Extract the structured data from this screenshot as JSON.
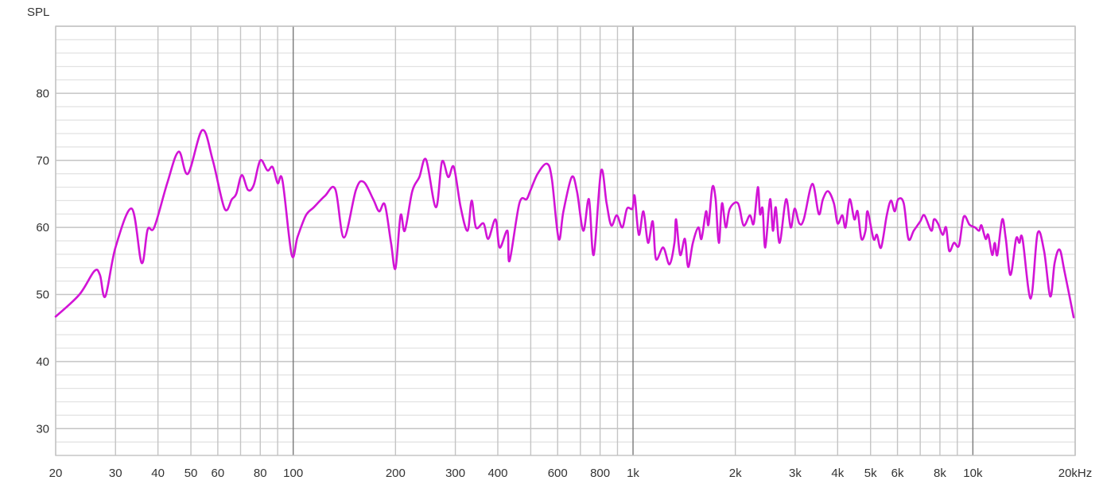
{
  "chart_data": {
    "type": "line",
    "ylabel": "SPL",
    "xlabel": "",
    "x_scale": "log",
    "xlim": [
      20,
      20000
    ],
    "ylim": [
      26,
      90
    ],
    "grid": true,
    "line_color": "#d214d6",
    "x_tick_labels": [
      {
        "v": 20,
        "t": "20"
      },
      {
        "v": 30,
        "t": "30"
      },
      {
        "v": 40,
        "t": "40"
      },
      {
        "v": 50,
        "t": "50"
      },
      {
        "v": 60,
        "t": "60"
      },
      {
        "v": 80,
        "t": "80"
      },
      {
        "v": 100,
        "t": "100"
      },
      {
        "v": 200,
        "t": "200"
      },
      {
        "v": 300,
        "t": "300"
      },
      {
        "v": 400,
        "t": "400"
      },
      {
        "v": 600,
        "t": "600"
      },
      {
        "v": 800,
        "t": "800"
      },
      {
        "v": 1000,
        "t": "1k"
      },
      {
        "v": 2000,
        "t": "2k"
      },
      {
        "v": 3000,
        "t": "3k"
      },
      {
        "v": 4000,
        "t": "4k"
      },
      {
        "v": 5000,
        "t": "5k"
      },
      {
        "v": 6000,
        "t": "6k"
      },
      {
        "v": 8000,
        "t": "8k"
      },
      {
        "v": 10000,
        "t": "10k"
      },
      {
        "v": 20000,
        "t": "20kHz"
      }
    ],
    "y_tick_labels": [
      {
        "v": 30,
        "t": "30"
      },
      {
        "v": 40,
        "t": "40"
      },
      {
        "v": 50,
        "t": "50"
      },
      {
        "v": 60,
        "t": "60"
      },
      {
        "v": 70,
        "t": "70"
      },
      {
        "v": 80,
        "t": "80"
      }
    ],
    "points": [
      [
        20,
        46.7
      ],
      [
        23.5,
        50
      ],
      [
        26,
        53.5
      ],
      [
        27,
        52.9
      ],
      [
        28,
        49.7
      ],
      [
        30,
        57
      ],
      [
        33.5,
        62.8
      ],
      [
        35.8,
        54.7
      ],
      [
        37.3,
        59.7
      ],
      [
        39,
        60
      ],
      [
        42.6,
        66.6
      ],
      [
        46,
        71.3
      ],
      [
        49,
        68
      ],
      [
        54,
        74.5
      ],
      [
        58,
        70
      ],
      [
        62.8,
        62.8
      ],
      [
        66,
        64.2
      ],
      [
        68,
        65
      ],
      [
        70.6,
        67.8
      ],
      [
        73.6,
        65.6
      ],
      [
        76.5,
        66.3
      ],
      [
        80,
        70
      ],
      [
        84,
        68.5
      ],
      [
        87,
        69
      ],
      [
        90,
        66.6
      ],
      [
        93,
        67
      ],
      [
        99,
        55.9
      ],
      [
        103,
        58.6
      ],
      [
        109,
        61.8
      ],
      [
        115,
        63
      ],
      [
        124,
        64.7
      ],
      [
        133,
        65.7
      ],
      [
        141,
        58.5
      ],
      [
        153,
        65.6
      ],
      [
        161,
        66.8
      ],
      [
        172,
        64.2
      ],
      [
        179,
        62.4
      ],
      [
        186,
        63.4
      ],
      [
        194,
        57.7
      ],
      [
        200,
        53.9
      ],
      [
        207,
        61.8
      ],
      [
        213,
        59.5
      ],
      [
        224,
        65.4
      ],
      [
        235,
        67.5
      ],
      [
        246,
        70.1
      ],
      [
        263,
        63
      ],
      [
        274,
        69.8
      ],
      [
        286,
        67.5
      ],
      [
        297,
        69
      ],
      [
        311,
        63
      ],
      [
        326,
        59.5
      ],
      [
        335,
        64
      ],
      [
        345,
        60
      ],
      [
        363,
        60.6
      ],
      [
        375,
        58.3
      ],
      [
        394,
        61.2
      ],
      [
        405,
        57
      ],
      [
        427,
        59.5
      ],
      [
        433,
        55
      ],
      [
        463,
        63.6
      ],
      [
        486,
        64.2
      ],
      [
        498,
        65.4
      ],
      [
        524,
        68
      ],
      [
        558,
        69.5
      ],
      [
        577,
        67.2
      ],
      [
        604,
        58.3
      ],
      [
        624,
        62.4
      ],
      [
        660,
        67.5
      ],
      [
        684,
        65.4
      ],
      [
        714,
        59.5
      ],
      [
        742,
        64.2
      ],
      [
        766,
        55.9
      ],
      [
        805,
        68.4
      ],
      [
        836,
        63.6
      ],
      [
        863,
        60.3
      ],
      [
        896,
        61.8
      ],
      [
        930,
        60
      ],
      [
        960,
        62.8
      ],
      [
        996,
        62.8
      ],
      [
        1011,
        64.7
      ],
      [
        1040,
        58.9
      ],
      [
        1073,
        62.4
      ],
      [
        1107,
        57.7
      ],
      [
        1143,
        60.9
      ],
      [
        1168,
        55.3
      ],
      [
        1227,
        57
      ],
      [
        1280,
        54.5
      ],
      [
        1324,
        57.7
      ],
      [
        1339,
        61.2
      ],
      [
        1376,
        55.9
      ],
      [
        1421,
        58.3
      ],
      [
        1453,
        54.1
      ],
      [
        1500,
        57.7
      ],
      [
        1557,
        60
      ],
      [
        1590,
        58.3
      ],
      [
        1640,
        62.4
      ],
      [
        1667,
        60.4
      ],
      [
        1712,
        66
      ],
      [
        1750,
        64.2
      ],
      [
        1789,
        57.7
      ],
      [
        1827,
        63.6
      ],
      [
        1875,
        60
      ],
      [
        1926,
        62.8
      ],
      [
        2036,
        63.6
      ],
      [
        2114,
        60.3
      ],
      [
        2207,
        61.8
      ],
      [
        2266,
        60.6
      ],
      [
        2330,
        66
      ],
      [
        2364,
        62
      ],
      [
        2407,
        62.8
      ],
      [
        2450,
        57
      ],
      [
        2530,
        64.2
      ],
      [
        2580,
        59.5
      ],
      [
        2630,
        63
      ],
      [
        2700,
        57.7
      ],
      [
        2820,
        64.2
      ],
      [
        2910,
        60
      ],
      [
        2990,
        62.8
      ],
      [
        3085,
        60.6
      ],
      [
        3180,
        61.2
      ],
      [
        3370,
        66.5
      ],
      [
        3520,
        62
      ],
      [
        3620,
        64.2
      ],
      [
        3750,
        65.4
      ],
      [
        3900,
        63.6
      ],
      [
        4000,
        60.6
      ],
      [
        4130,
        61.8
      ],
      [
        4220,
        60
      ],
      [
        4340,
        64.2
      ],
      [
        4480,
        61.2
      ],
      [
        4580,
        62.4
      ],
      [
        4700,
        58.3
      ],
      [
        4830,
        59.5
      ],
      [
        4900,
        62.4
      ],
      [
        5100,
        58.3
      ],
      [
        5220,
        58.9
      ],
      [
        5370,
        57
      ],
      [
        5580,
        61.8
      ],
      [
        5740,
        64
      ],
      [
        5890,
        62.4
      ],
      [
        6030,
        64.2
      ],
      [
        6260,
        63.6
      ],
      [
        6460,
        58.3
      ],
      [
        6700,
        59.5
      ],
      [
        7000,
        60.9
      ],
      [
        7200,
        61.8
      ],
      [
        7550,
        59.5
      ],
      [
        7680,
        61.2
      ],
      [
        7890,
        60.6
      ],
      [
        8150,
        58.9
      ],
      [
        8340,
        60
      ],
      [
        8520,
        56.5
      ],
      [
        8800,
        57.7
      ],
      [
        9100,
        57.3
      ],
      [
        9400,
        61.6
      ],
      [
        9780,
        60.4
      ],
      [
        10150,
        60
      ],
      [
        10430,
        59.5
      ],
      [
        10600,
        60.3
      ],
      [
        10900,
        58.3
      ],
      [
        11100,
        58.9
      ],
      [
        11400,
        55.9
      ],
      [
        11600,
        57.7
      ],
      [
        11800,
        55.9
      ],
      [
        12200,
        61.2
      ],
      [
        12500,
        58.3
      ],
      [
        12900,
        52.9
      ],
      [
        13400,
        58.3
      ],
      [
        13700,
        57.7
      ],
      [
        14000,
        58.3
      ],
      [
        14800,
        49.4
      ],
      [
        15500,
        59.1
      ],
      [
        16200,
        56.5
      ],
      [
        16900,
        49.7
      ],
      [
        17400,
        54.7
      ],
      [
        18000,
        56.7
      ],
      [
        18600,
        53.5
      ],
      [
        19800,
        46.6
      ]
    ]
  }
}
